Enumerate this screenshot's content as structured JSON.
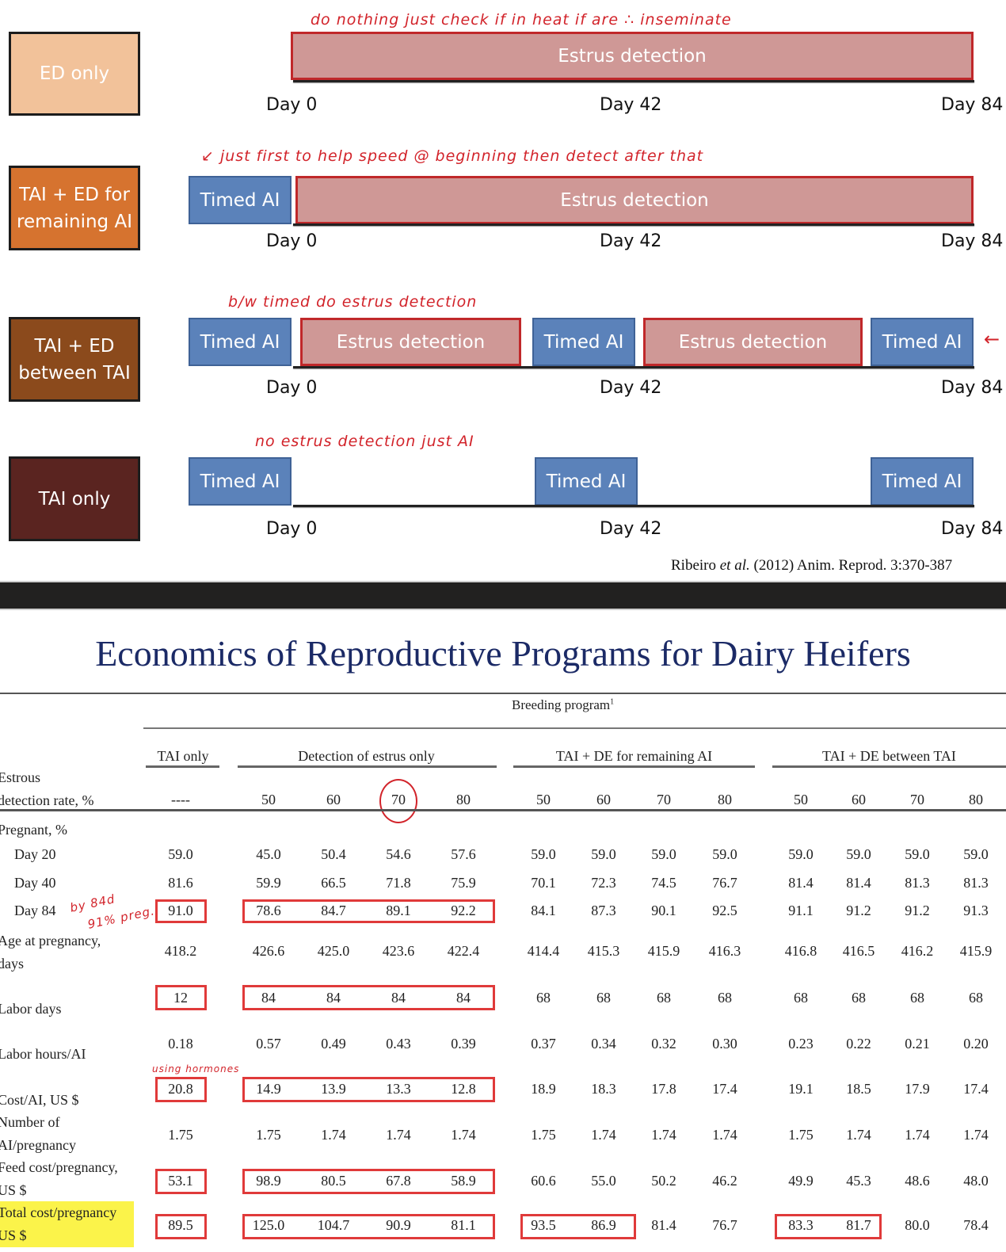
{
  "diagram": {
    "timeline_labels": [
      "Day 0",
      "Day 42",
      "Day 84"
    ],
    "programs": [
      {
        "label": "ED only",
        "color": "#f2c29a",
        "bars": [
          {
            "type": "ed",
            "label": "Estrus detection"
          }
        ],
        "annotation": "do nothing just check if in heat if are ∴ inseminate"
      },
      {
        "label": "TAI + ED for remaining AI",
        "color": "#d6732f",
        "bars": [
          {
            "type": "tai",
            "label": "Timed AI"
          },
          {
            "type": "ed",
            "label": "Estrus detection"
          }
        ],
        "annotation": "↙ just first to help speed @ beginning then detect after that"
      },
      {
        "label": "TAI + ED between TAI",
        "color": "#8b4a1c",
        "bars": [
          {
            "type": "tai",
            "label": "Timed AI"
          },
          {
            "type": "ed",
            "label": "Estrus detection"
          },
          {
            "type": "tai",
            "label": "Timed AI"
          },
          {
            "type": "ed",
            "label": "Estrus detection"
          },
          {
            "type": "tai",
            "label": "Timed AI"
          }
        ],
        "annotation": "b/w timed do estrus detection",
        "side_mark": "←"
      },
      {
        "label": "TAI only",
        "color": "#5a2420",
        "bars": [
          {
            "type": "tai",
            "label": "Timed AI"
          },
          {
            "type": "tai",
            "label": "Timed AI"
          },
          {
            "type": "tai",
            "label": "Timed AI"
          }
        ],
        "annotation": "no estrus detection just AI"
      }
    ],
    "citation": {
      "authors": "Ribeiro ",
      "etal": "et al.",
      "rest": " (2012) Anim. Reprod. 3:370-387"
    }
  },
  "table": {
    "title": "Economics of Reproductive Programs for Dairy Heifers",
    "breeding_program_label": "Breeding program",
    "footnote_mark": "1",
    "groups": [
      "TAI only",
      "Detection of estrus only",
      "TAI + DE for remaining AI",
      "TAI + DE between TAI"
    ],
    "detection_rate_label_1": "Estrous",
    "detection_rate_label_2": "detection rate, %",
    "detection_rates": [
      "----",
      "50",
      "60",
      "70",
      "80",
      "50",
      "60",
      "70",
      "80",
      "50",
      "60",
      "70",
      "80"
    ],
    "pregnant_label": "Pregnant, %",
    "rows": [
      {
        "label": [
          "Day 20"
        ],
        "indent": true,
        "values": [
          "59.0",
          "45.0",
          "50.4",
          "54.6",
          "57.6",
          "59.0",
          "59.0",
          "59.0",
          "59.0",
          "59.0",
          "59.0",
          "59.0",
          "59.0"
        ]
      },
      {
        "label": [
          "Day 40"
        ],
        "indent": true,
        "values": [
          "81.6",
          "59.9",
          "66.5",
          "71.8",
          "75.9",
          "70.1",
          "72.3",
          "74.5",
          "76.7",
          "81.4",
          "81.4",
          "81.3",
          "81.3"
        ]
      },
      {
        "label": [
          "Day 84"
        ],
        "indent": true,
        "values": [
          "91.0",
          "78.6",
          "84.7",
          "89.1",
          "92.2",
          "84.1",
          "87.3",
          "90.1",
          "92.5",
          "91.1",
          "91.2",
          "91.2",
          "91.3"
        ]
      },
      {
        "label": [
          "Age at pregnancy,",
          "days"
        ],
        "values": [
          "418.2",
          "426.6",
          "425.0",
          "423.6",
          "422.4",
          "414.4",
          "415.3",
          "415.9",
          "416.3",
          "416.8",
          "416.5",
          "416.2",
          "415.9"
        ]
      },
      {
        "label": [
          "Labor days"
        ],
        "values": [
          "12",
          "84",
          "84",
          "84",
          "84",
          "68",
          "68",
          "68",
          "68",
          "68",
          "68",
          "68",
          "68"
        ]
      },
      {
        "label": [
          "Labor hours/AI"
        ],
        "values": [
          "0.18",
          "0.57",
          "0.49",
          "0.43",
          "0.39",
          "0.37",
          "0.34",
          "0.32",
          "0.30",
          "0.23",
          "0.22",
          "0.21",
          "0.20"
        ]
      },
      {
        "label": [
          "Cost/AI, US $"
        ],
        "values": [
          "20.8",
          "14.9",
          "13.9",
          "13.3",
          "12.8",
          "18.9",
          "18.3",
          "17.8",
          "17.4",
          "19.1",
          "18.5",
          "17.9",
          "17.4"
        ]
      },
      {
        "label": [
          "Number of",
          "AI/pregnancy"
        ],
        "values": [
          "1.75",
          "1.75",
          "1.74",
          "1.74",
          "1.74",
          "1.75",
          "1.74",
          "1.74",
          "1.74",
          "1.75",
          "1.74",
          "1.74",
          "1.74"
        ]
      },
      {
        "label": [
          "Feed cost/pregnancy,",
          "US $"
        ],
        "values": [
          "53.1",
          "98.9",
          "80.5",
          "67.8",
          "58.9",
          "60.6",
          "55.0",
          "50.2",
          "46.2",
          "49.9",
          "45.3",
          "48.6",
          "48.0"
        ]
      },
      {
        "label": [
          "Total cost/pregnancy",
          "US $"
        ],
        "highlight": true,
        "values": [
          "89.5",
          "125.0",
          "104.7",
          "90.9",
          "81.1",
          "93.5",
          "86.9",
          "81.4",
          "76.7",
          "83.3",
          "81.7",
          "80.0",
          "78.4"
        ]
      }
    ],
    "annotations": {
      "day84_note_1": "by 84d",
      "day84_note_2": "91% preg.",
      "cost_ai_note": "using hormones"
    }
  }
}
